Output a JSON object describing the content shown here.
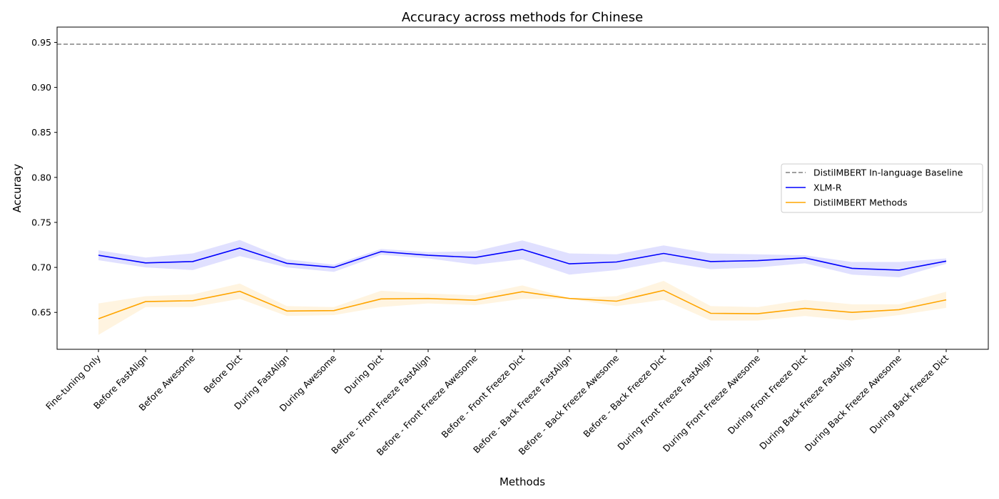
{
  "chart_data": {
    "type": "line",
    "title": "Accuracy across methods for Chinese",
    "xlabel": "Methods",
    "ylabel": "Accuracy",
    "ylim": [
      0.609,
      0.967
    ],
    "yticks": [
      "0.65",
      "0.70",
      "0.75",
      "0.80",
      "0.85",
      "0.90",
      "0.95"
    ],
    "grid": false,
    "legend_position": "center-right",
    "categories": [
      "Fine-tuning Only",
      "Before FastAlign",
      "Before Awesome",
      "Before Dict",
      "During FastAlign",
      "During Awesome",
      "During Dict",
      "Before - Front Freeze FastAlign",
      "Before - Front Freeze Awesome",
      "Before - Front Freeze Dict",
      "Before - Back Freeze FastAlign",
      "Before - Back Freeze Awesome",
      "Before - Back Freeze Dict",
      "During Front Freeze FastAlign",
      "During Front Freeze Awesome",
      "During Front Freeze Dict",
      "During Back Freeze FastAlign",
      "During Back Freeze Awesome",
      "During Back Freeze Dict"
    ],
    "baseline": {
      "name": "DistilMBERT In-language Baseline",
      "value": 0.948,
      "color": "#808080",
      "style": "dashed"
    },
    "series": [
      {
        "name": "XLM-R",
        "color": "#0000ff",
        "band_color": "#0000ff",
        "values": [
          0.7135,
          0.705,
          0.7065,
          0.7215,
          0.7045,
          0.7,
          0.7175,
          0.7135,
          0.711,
          0.72,
          0.704,
          0.706,
          0.7155,
          0.7065,
          0.7075,
          0.7105,
          0.699,
          0.697,
          0.707
        ],
        "lower": [
          0.708,
          0.7,
          0.697,
          0.7125,
          0.7,
          0.695,
          0.714,
          0.71,
          0.703,
          0.709,
          0.692,
          0.697,
          0.7065,
          0.698,
          0.7,
          0.7045,
          0.692,
          0.689,
          0.704
        ],
        "upper": [
          0.719,
          0.711,
          0.7155,
          0.7305,
          0.709,
          0.703,
          0.7205,
          0.717,
          0.718,
          0.73,
          0.7155,
          0.7145,
          0.7245,
          0.7155,
          0.7145,
          0.7135,
          0.706,
          0.706,
          0.71
        ]
      },
      {
        "name": "DistilMBERT Methods",
        "color": "#ffa500",
        "band_color": "#ffa500",
        "values": [
          0.643,
          0.662,
          0.663,
          0.6735,
          0.6515,
          0.652,
          0.665,
          0.6655,
          0.6635,
          0.673,
          0.6655,
          0.6625,
          0.6745,
          0.649,
          0.6485,
          0.6545,
          0.65,
          0.653,
          0.664
        ],
        "lower": [
          0.625,
          0.656,
          0.656,
          0.665,
          0.646,
          0.647,
          0.656,
          0.66,
          0.658,
          0.665,
          0.665,
          0.657,
          0.664,
          0.641,
          0.641,
          0.646,
          0.641,
          0.647,
          0.655
        ],
        "upper": [
          0.66,
          0.668,
          0.67,
          0.682,
          0.657,
          0.656,
          0.674,
          0.671,
          0.669,
          0.68,
          0.666,
          0.668,
          0.685,
          0.657,
          0.656,
          0.664,
          0.659,
          0.659,
          0.673
        ]
      }
    ]
  }
}
